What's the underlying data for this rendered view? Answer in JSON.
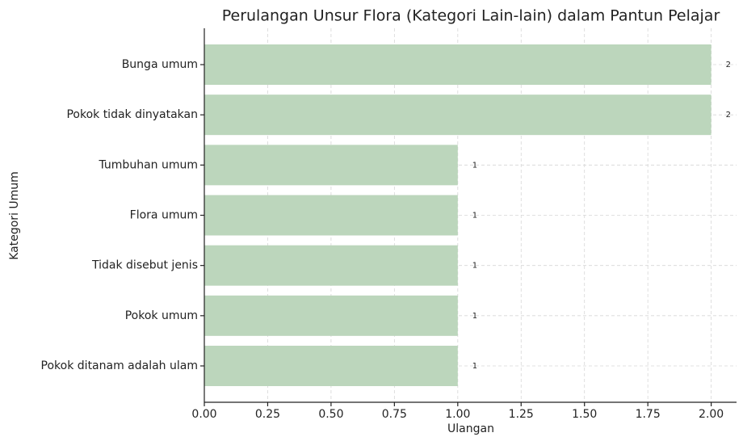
{
  "chart_data": {
    "type": "bar",
    "orientation": "horizontal",
    "title": "Perulangan Unsur Flora (Kategori Lain-lain) dalam Pantun Pelajar",
    "xlabel": "Ulangan",
    "ylabel": "Kategori Umum",
    "categories": [
      "Bunga umum",
      "Pokok tidak dinyatakan",
      "Tumbuhan umum",
      "Flora umum",
      "Tidak disebut jenis",
      "Pokok umum",
      "Pokok ditanam adalah ulam"
    ],
    "values": [
      2,
      2,
      1,
      1,
      1,
      1,
      1
    ],
    "color": "#bcd6bc",
    "xlim": [
      0,
      2.1
    ],
    "xticks": [
      {
        "value": 0,
        "label": "0.00"
      },
      {
        "value": 0.25,
        "label": "0.25"
      },
      {
        "value": 0.5,
        "label": "0.50"
      },
      {
        "value": 0.75,
        "label": "0.75"
      },
      {
        "value": 1,
        "label": "1.00"
      },
      {
        "value": 1.25,
        "label": "1.25"
      },
      {
        "value": 1.5,
        "label": "1.50"
      },
      {
        "value": 1.75,
        "label": "1.75"
      },
      {
        "value": 2,
        "label": "2.00"
      }
    ],
    "grid": true
  }
}
